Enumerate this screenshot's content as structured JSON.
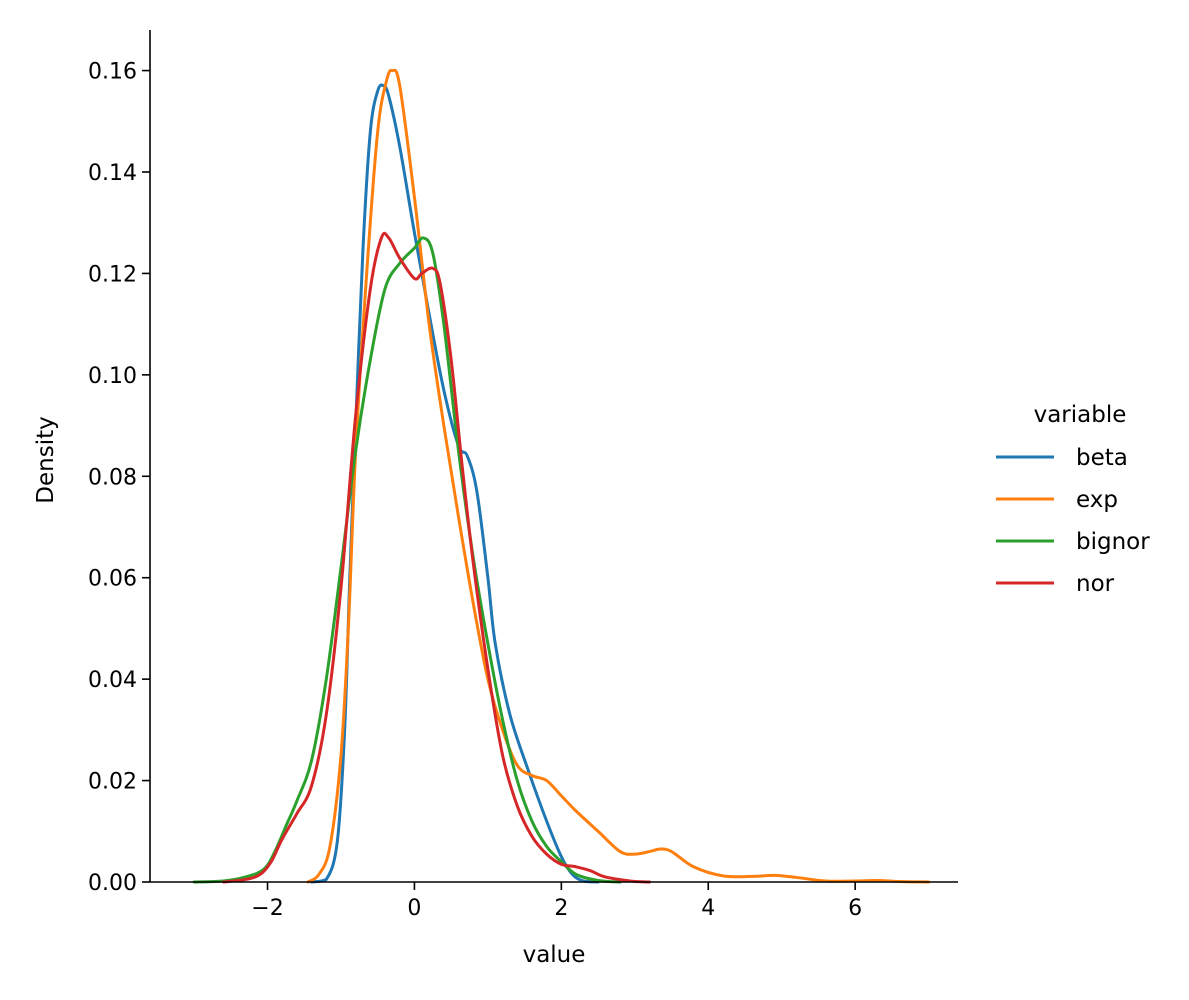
{
  "chart_data": {
    "type": "line",
    "title": "",
    "xlabel": "value",
    "ylabel": "Density",
    "xlim": [
      -3.6,
      7.4
    ],
    "ylim": [
      0,
      0.168
    ],
    "x_ticks": [
      -2,
      0,
      2,
      4,
      6
    ],
    "x_tick_labels": [
      "−2",
      "0",
      "2",
      "4",
      "6"
    ],
    "y_ticks": [
      0,
      0.02,
      0.04,
      0.06,
      0.08,
      0.1,
      0.12,
      0.14,
      0.16
    ],
    "y_tick_labels": [
      "0.00",
      "0.02",
      "0.04",
      "0.06",
      "0.08",
      "0.10",
      "0.12",
      "0.14",
      "0.16"
    ],
    "grid": false,
    "legend": {
      "title": "variable",
      "placement": "right"
    },
    "series": [
      {
        "name": "beta",
        "color": "#1f77b4",
        "points": [
          [
            -1.4,
            0
          ],
          [
            -1.2,
            0.0005
          ],
          [
            -1.05,
            0.008
          ],
          [
            -0.95,
            0.03
          ],
          [
            -0.88,
            0.06
          ],
          [
            -0.8,
            0.09
          ],
          [
            -0.7,
            0.125
          ],
          [
            -0.6,
            0.148
          ],
          [
            -0.5,
            0.156
          ],
          [
            -0.42,
            0.157
          ],
          [
            -0.35,
            0.155
          ],
          [
            -0.2,
            0.145
          ],
          [
            0,
            0.128
          ],
          [
            0.2,
            0.112
          ],
          [
            0.4,
            0.097
          ],
          [
            0.6,
            0.086
          ],
          [
            0.72,
            0.084
          ],
          [
            0.85,
            0.077
          ],
          [
            1.0,
            0.06
          ],
          [
            1.1,
            0.047
          ],
          [
            1.3,
            0.033
          ],
          [
            1.55,
            0.022
          ],
          [
            1.8,
            0.012
          ],
          [
            2.0,
            0.005
          ],
          [
            2.15,
            0.0015
          ],
          [
            2.3,
            0.0002
          ],
          [
            2.5,
            0
          ]
        ]
      },
      {
        "name": "exp",
        "color": "#ff7f0e",
        "points": [
          [
            -1.45,
            0
          ],
          [
            -1.3,
            0.0015
          ],
          [
            -1.15,
            0.007
          ],
          [
            -1.0,
            0.025
          ],
          [
            -0.9,
            0.05
          ],
          [
            -0.8,
            0.085
          ],
          [
            -0.65,
            0.12
          ],
          [
            -0.5,
            0.148
          ],
          [
            -0.38,
            0.158
          ],
          [
            -0.3,
            0.16
          ],
          [
            -0.2,
            0.157
          ],
          [
            0,
            0.135
          ],
          [
            0.2,
            0.11
          ],
          [
            0.4,
            0.09
          ],
          [
            0.6,
            0.072
          ],
          [
            0.8,
            0.055
          ],
          [
            1.0,
            0.04
          ],
          [
            1.2,
            0.03
          ],
          [
            1.4,
            0.023
          ],
          [
            1.6,
            0.021
          ],
          [
            1.8,
            0.02
          ],
          [
            2.0,
            0.017
          ],
          [
            2.2,
            0.014
          ],
          [
            2.5,
            0.01
          ],
          [
            2.8,
            0.006
          ],
          [
            3.0,
            0.0055
          ],
          [
            3.2,
            0.006
          ],
          [
            3.35,
            0.0065
          ],
          [
            3.5,
            0.006
          ],
          [
            3.8,
            0.003
          ],
          [
            4.2,
            0.0012
          ],
          [
            4.6,
            0.0011
          ],
          [
            4.9,
            0.0013
          ],
          [
            5.2,
            0.0009
          ],
          [
            5.6,
            0.0002
          ],
          [
            6.0,
            0.0002
          ],
          [
            6.3,
            0.0003
          ],
          [
            6.6,
            0.0001
          ],
          [
            7.0,
            0
          ]
        ]
      },
      {
        "name": "bignor",
        "color": "#2ca02c",
        "points": [
          [
            -3.0,
            0
          ],
          [
            -2.6,
            0.0002
          ],
          [
            -2.3,
            0.001
          ],
          [
            -2.05,
            0.0025
          ],
          [
            -1.9,
            0.006
          ],
          [
            -1.75,
            0.011
          ],
          [
            -1.6,
            0.016
          ],
          [
            -1.4,
            0.024
          ],
          [
            -1.2,
            0.04
          ],
          [
            -1.0,
            0.062
          ],
          [
            -0.8,
            0.085
          ],
          [
            -0.6,
            0.103
          ],
          [
            -0.4,
            0.117
          ],
          [
            -0.2,
            0.122
          ],
          [
            0,
            0.125
          ],
          [
            0.12,
            0.127
          ],
          [
            0.25,
            0.124
          ],
          [
            0.4,
            0.11
          ],
          [
            0.6,
            0.085
          ],
          [
            0.8,
            0.064
          ],
          [
            1.0,
            0.047
          ],
          [
            1.2,
            0.032
          ],
          [
            1.4,
            0.02
          ],
          [
            1.6,
            0.012
          ],
          [
            1.8,
            0.007
          ],
          [
            2.0,
            0.004
          ],
          [
            2.2,
            0.0015
          ],
          [
            2.5,
            0.0003
          ],
          [
            2.8,
            0
          ]
        ]
      },
      {
        "name": "nor",
        "color": "#d62728",
        "points": [
          [
            -2.6,
            0
          ],
          [
            -2.3,
            0.0005
          ],
          [
            -2.1,
            0.0015
          ],
          [
            -1.95,
            0.004
          ],
          [
            -1.8,
            0.0085
          ],
          [
            -1.6,
            0.0135
          ],
          [
            -1.4,
            0.019
          ],
          [
            -1.2,
            0.033
          ],
          [
            -1.0,
            0.058
          ],
          [
            -0.8,
            0.092
          ],
          [
            -0.6,
            0.117
          ],
          [
            -0.45,
            0.127
          ],
          [
            -0.35,
            0.127
          ],
          [
            -0.2,
            0.123
          ],
          [
            0,
            0.119
          ],
          [
            0.1,
            0.12
          ],
          [
            0.25,
            0.121
          ],
          [
            0.35,
            0.118
          ],
          [
            0.5,
            0.103
          ],
          [
            0.65,
            0.082
          ],
          [
            0.8,
            0.063
          ],
          [
            1.0,
            0.042
          ],
          [
            1.2,
            0.025
          ],
          [
            1.4,
            0.015
          ],
          [
            1.6,
            0.009
          ],
          [
            1.8,
            0.0055
          ],
          [
            2.0,
            0.0035
          ],
          [
            2.2,
            0.003
          ],
          [
            2.4,
            0.0022
          ],
          [
            2.6,
            0.001
          ],
          [
            3.0,
            0.0001
          ],
          [
            3.2,
            0
          ]
        ]
      }
    ]
  }
}
